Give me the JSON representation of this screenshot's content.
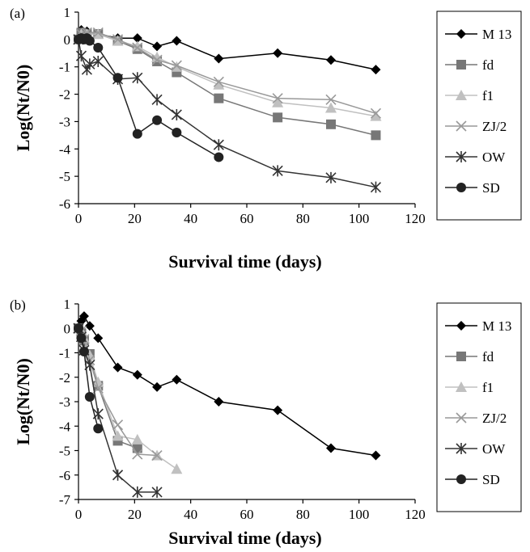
{
  "chart_data": [
    {
      "type": "line",
      "panel_label": "(a)",
      "xlabel": "Survival time (days)",
      "ylabel": "Log(Nt/N0)",
      "xlim": [
        0,
        120
      ],
      "ylim": [
        -6,
        1
      ],
      "xticks": [
        "0",
        "20",
        "40",
        "60",
        "80",
        "100",
        "120"
      ],
      "yticks": [
        "1",
        "0",
        "-1",
        "-2",
        "-3",
        "-4",
        "-5",
        "-6"
      ],
      "grid": false,
      "legend_position": "right",
      "series": [
        {
          "name": "M 13",
          "color": "#000000",
          "marker": "diamond",
          "x": [
            0,
            1,
            3,
            7,
            14,
            21,
            28,
            35,
            50,
            71,
            90,
            106
          ],
          "y": [
            0,
            0.35,
            0.3,
            0.2,
            0.05,
            0.05,
            -0.25,
            -0.05,
            -0.7,
            -0.5,
            -0.75,
            -1.1
          ]
        },
        {
          "name": "fd",
          "color": "#777777",
          "marker": "square",
          "x": [
            0,
            1,
            3,
            7,
            14,
            21,
            28,
            35,
            50,
            71,
            90,
            106
          ],
          "y": [
            0,
            0.25,
            0.2,
            0.2,
            -0.05,
            -0.35,
            -0.8,
            -1.2,
            -2.15,
            -2.85,
            -3.1,
            -3.5
          ]
        },
        {
          "name": "f1",
          "color": "#c0c0c0",
          "marker": "triangle",
          "x": [
            0,
            1,
            3,
            7,
            14,
            21,
            28,
            35,
            50,
            71,
            90,
            106
          ],
          "y": [
            0,
            0.2,
            0.2,
            0.2,
            -0.05,
            -0.25,
            -0.65,
            -1.0,
            -1.65,
            -2.3,
            -2.5,
            -2.8
          ]
        },
        {
          "name": "ZJ/2",
          "color": "#999999",
          "marker": "x",
          "x": [
            0,
            1,
            3,
            7,
            14,
            21,
            28,
            35,
            50,
            71,
            90,
            106
          ],
          "y": [
            0,
            0.2,
            0.25,
            0.25,
            0.0,
            -0.3,
            -0.75,
            -0.95,
            -1.55,
            -2.15,
            -2.2,
            -2.7
          ]
        },
        {
          "name": "OW",
          "color": "#333333",
          "marker": "star",
          "x": [
            0,
            1,
            3,
            4,
            7,
            14,
            21,
            28,
            35,
            50,
            71,
            90,
            106
          ],
          "y": [
            0,
            -0.6,
            -1.1,
            -0.9,
            -0.8,
            -1.45,
            -1.4,
            -2.2,
            -2.75,
            -3.85,
            -4.8,
            -5.05,
            -5.4
          ]
        },
        {
          "name": "SD",
          "color": "#222222",
          "marker": "circle",
          "x": [
            0,
            1,
            2,
            3,
            4,
            7,
            14,
            21,
            28,
            35,
            50
          ],
          "y": [
            0,
            0.05,
            0.0,
            0.05,
            -0.05,
            -0.3,
            -1.4,
            -3.45,
            -2.95,
            -3.4,
            -4.3
          ]
        }
      ]
    },
    {
      "type": "line",
      "panel_label": "(b)",
      "xlabel": "Survival time (days)",
      "ylabel": "Log(Nt/N0)",
      "xlim": [
        0,
        120
      ],
      "ylim": [
        -7,
        1
      ],
      "xticks": [
        "0",
        "20",
        "40",
        "60",
        "80",
        "100",
        "120"
      ],
      "yticks": [
        "1",
        "0",
        "-1",
        "-2",
        "-3",
        "-4",
        "-5",
        "-6",
        "-7"
      ],
      "grid": false,
      "legend_position": "right",
      "series": [
        {
          "name": "M 13",
          "color": "#000000",
          "marker": "diamond",
          "x": [
            0,
            1,
            2,
            4,
            7,
            14,
            21,
            28,
            35,
            50,
            71,
            90,
            106
          ],
          "y": [
            0,
            0.3,
            0.5,
            0.1,
            -0.4,
            -1.6,
            -1.9,
            -2.4,
            -2.1,
            -3.0,
            -3.35,
            -4.9,
            -5.2
          ]
        },
        {
          "name": "fd",
          "color": "#777777",
          "marker": "square",
          "x": [
            0,
            1,
            2,
            4,
            7,
            14,
            21
          ],
          "y": [
            0,
            -0.2,
            -0.5,
            -1.05,
            -2.35,
            -4.6,
            -4.9
          ]
        },
        {
          "name": "f1",
          "color": "#c0c0c0",
          "marker": "triangle",
          "x": [
            0,
            1,
            2,
            4,
            7,
            14,
            21,
            28,
            35
          ],
          "y": [
            0,
            -0.1,
            -0.4,
            -1.1,
            -2.2,
            -4.4,
            -4.55,
            -5.2,
            -5.75
          ]
        },
        {
          "name": "ZJ/2",
          "color": "#999999",
          "marker": "x",
          "x": [
            0,
            1,
            2,
            4,
            7,
            14,
            21,
            28
          ],
          "y": [
            0,
            -0.1,
            -0.45,
            -1.3,
            -2.45,
            -3.95,
            -5.15,
            -5.2
          ]
        },
        {
          "name": "OW",
          "color": "#333333",
          "marker": "star",
          "x": [
            0,
            1,
            2,
            4,
            7,
            14,
            21,
            28
          ],
          "y": [
            0,
            -0.35,
            -0.9,
            -1.5,
            -3.5,
            -6.0,
            -6.7,
            -6.7
          ]
        },
        {
          "name": "SD",
          "color": "#222222",
          "marker": "circle",
          "x": [
            0,
            1,
            2,
            4,
            7
          ],
          "y": [
            0,
            -0.4,
            -0.95,
            -2.8,
            -4.1
          ]
        }
      ]
    }
  ]
}
